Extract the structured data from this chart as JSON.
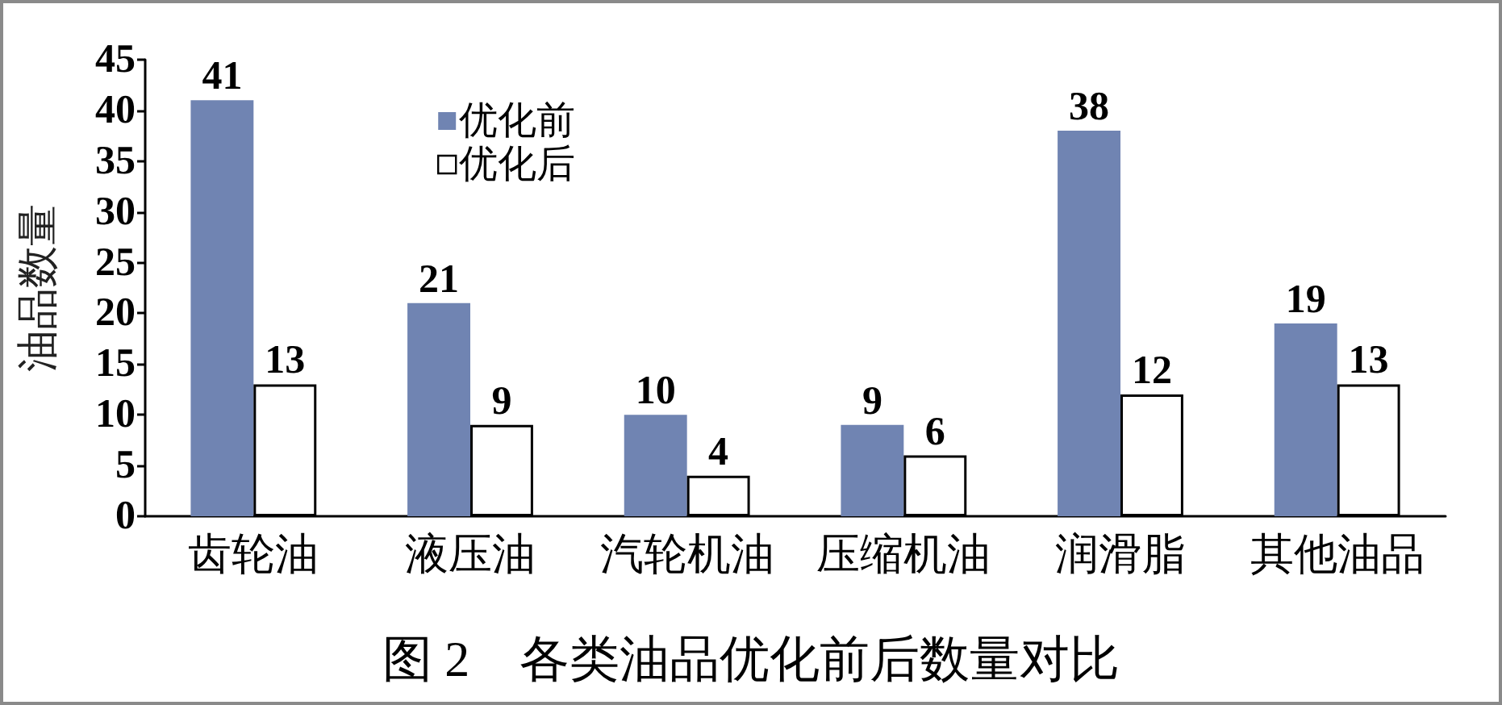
{
  "chart_data": {
    "type": "bar",
    "title": "图 2　各类油品优化前后数量对比",
    "ylabel": "油品数量",
    "categories": [
      "齿轮油",
      "液压油",
      "汽轮机油",
      "压缩机油",
      "润滑脂",
      "其他油品"
    ],
    "series": [
      {
        "name": "优化前",
        "color": "#7084b2",
        "values": [
          41,
          21,
          10,
          9,
          38,
          19
        ]
      },
      {
        "name": "优化后",
        "color": "#ffffff",
        "values": [
          13,
          9,
          4,
          6,
          12,
          13
        ]
      }
    ],
    "ylim": [
      0,
      45
    ],
    "yticks": [
      0,
      5,
      10,
      15,
      20,
      25,
      30,
      35,
      40,
      45
    ],
    "grid": false,
    "legend": "top left",
    "data_labels": true
  }
}
